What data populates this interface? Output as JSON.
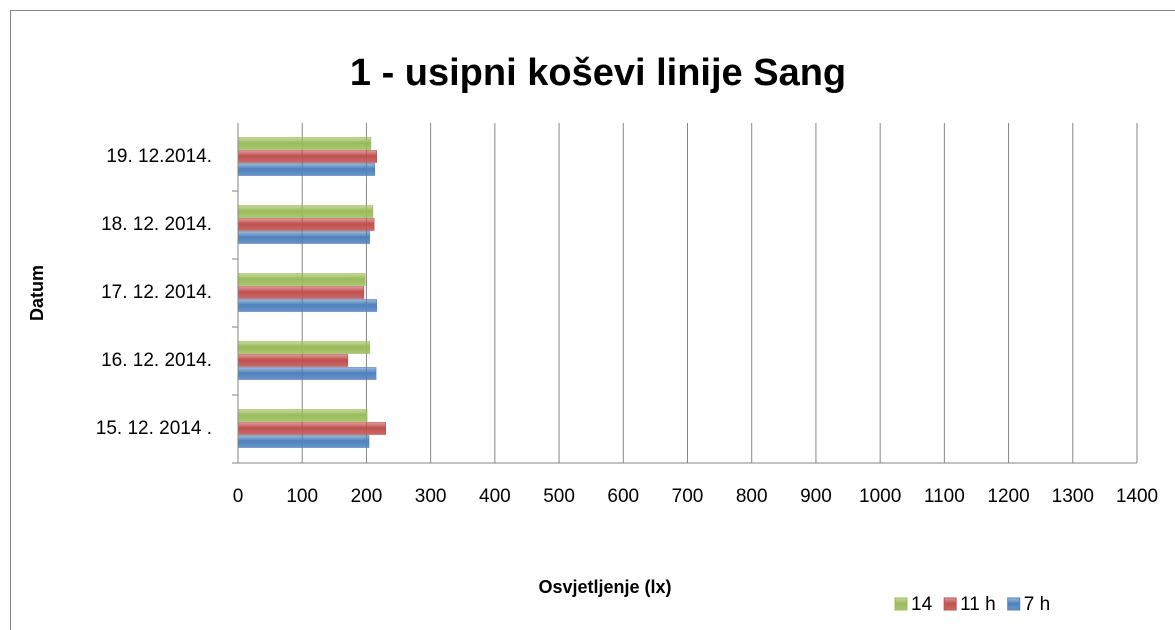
{
  "chart_data": {
    "type": "bar",
    "orientation": "horizontal",
    "title": "1 - usipni koševi linije Sang",
    "x_label": "Osvjetljenje (lx)",
    "y_label": "Datum",
    "categories": [
      "15. 12. 2014 .",
      "16. 12. 2014.",
      "17. 12. 2014.",
      "18. 12. 2014.",
      "19. 12.2014."
    ],
    "series": [
      {
        "name": "7 h",
        "color": "#4f81bd",
        "values": [
          204,
          215,
          216,
          205,
          213
        ]
      },
      {
        "name": "11 h",
        "color": "#c0504d",
        "values": [
          230,
          171,
          196,
          212,
          216
        ]
      },
      {
        "name": "14",
        "color": "#9bbb59",
        "values": [
          201,
          205,
          198,
          210,
          207
        ]
      }
    ],
    "xlim": [
      0,
      1400
    ],
    "xticks": [
      0,
      100,
      200,
      300,
      400,
      500,
      600,
      700,
      800,
      900,
      1000,
      1100,
      1200,
      1300,
      1400
    ],
    "grid": true,
    "legend": "bottom-right"
  }
}
